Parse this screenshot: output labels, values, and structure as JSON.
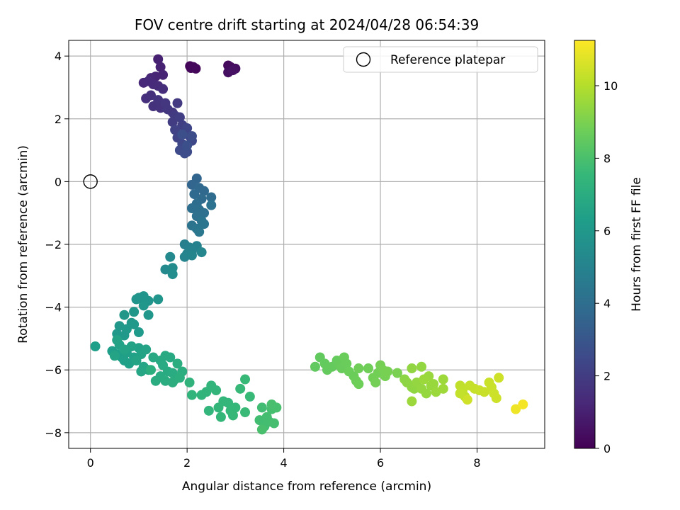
{
  "chart_data": {
    "type": "scatter",
    "title": "FOV centre drift starting at 2024/04/28 06:54:39",
    "xlabel": "Angular distance from reference (arcmin)",
    "ylabel": "Rotation from reference (arcmin)",
    "xlim": [
      -0.45,
      9.4
    ],
    "ylim": [
      -8.5,
      4.5
    ],
    "xticks": [
      0,
      2,
      4,
      6,
      8
    ],
    "yticks": [
      -8,
      -6,
      -4,
      -2,
      0,
      2,
      4
    ],
    "xtick_labels": [
      "0",
      "2",
      "4",
      "6",
      "8"
    ],
    "ytick_labels": [
      "−8",
      "−6",
      "−4",
      "−2",
      "0",
      "2",
      "4"
    ],
    "grid": true,
    "legend": {
      "label": "Reference platepar",
      "placement": "top-right"
    },
    "reference_point": {
      "x": 0,
      "y": 0
    },
    "colorbar": {
      "label": "Hours from first FF file",
      "colormap": "viridis",
      "range": [
        0,
        11.25
      ],
      "ticks": [
        0,
        2,
        4,
        6,
        8,
        10
      ],
      "tick_labels": [
        "0",
        "2",
        "4",
        "6",
        "8",
        "10"
      ]
    },
    "points": [
      [
        2.06,
        3.68,
        0.1
      ],
      [
        2.08,
        3.62,
        0.15
      ],
      [
        2.18,
        3.6,
        0.2
      ],
      [
        2.13,
        3.65,
        0.25
      ],
      [
        2.85,
        3.7,
        0.3
      ],
      [
        2.9,
        3.65,
        0.35
      ],
      [
        3.0,
        3.6,
        0.4
      ],
      [
        2.85,
        3.48,
        0.45
      ],
      [
        2.95,
        3.55,
        0.5
      ],
      [
        1.4,
        3.9,
        1.0
      ],
      [
        1.45,
        3.65,
        1.05
      ],
      [
        1.5,
        3.4,
        1.1
      ],
      [
        1.35,
        3.35,
        1.15
      ],
      [
        1.25,
        3.3,
        1.2
      ],
      [
        1.1,
        3.15,
        1.25
      ],
      [
        1.2,
        3.2,
        1.3
      ],
      [
        1.3,
        3.1,
        1.35
      ],
      [
        1.4,
        3.05,
        1.4
      ],
      [
        1.5,
        2.95,
        1.45
      ],
      [
        1.15,
        2.65,
        1.5
      ],
      [
        1.25,
        2.75,
        1.55
      ],
      [
        1.3,
        2.4,
        1.6
      ],
      [
        1.45,
        2.35,
        1.65
      ],
      [
        1.4,
        2.6,
        1.7
      ],
      [
        1.55,
        2.5,
        1.75
      ],
      [
        1.6,
        2.3,
        1.8
      ],
      [
        1.7,
        2.2,
        1.85
      ],
      [
        1.8,
        2.5,
        1.9
      ],
      [
        1.75,
        2.1,
        1.95
      ],
      [
        1.7,
        1.9,
        2.0
      ],
      [
        1.85,
        2.05,
        2.05
      ],
      [
        1.9,
        1.8,
        2.1
      ],
      [
        1.95,
        1.6,
        2.15
      ],
      [
        1.75,
        1.65,
        2.2
      ],
      [
        1.8,
        1.4,
        2.25
      ],
      [
        2.0,
        1.7,
        2.3
      ],
      [
        2.05,
        1.45,
        2.35
      ],
      [
        1.9,
        1.2,
        2.4
      ],
      [
        2.1,
        1.3,
        2.45
      ],
      [
        1.85,
        1.0,
        2.5
      ],
      [
        2.0,
        0.95,
        2.55
      ],
      [
        1.95,
        0.9,
        2.6
      ],
      [
        2.1,
        1.45,
        2.65
      ],
      [
        1.9,
        1.5,
        2.7
      ],
      [
        2.0,
        1.15,
        2.75
      ],
      [
        2.2,
        0.1,
        3.6
      ],
      [
        2.1,
        -0.1,
        3.65
      ],
      [
        2.25,
        -0.2,
        3.7
      ],
      [
        2.35,
        -0.3,
        3.75
      ],
      [
        2.15,
        -0.4,
        3.8
      ],
      [
        2.3,
        -0.55,
        3.85
      ],
      [
        2.5,
        -0.5,
        3.9
      ],
      [
        2.2,
        -0.7,
        3.95
      ],
      [
        2.1,
        -0.85,
        4.0
      ],
      [
        2.25,
        -0.9,
        4.05
      ],
      [
        2.35,
        -1.0,
        4.1
      ],
      [
        2.2,
        -1.1,
        4.15
      ],
      [
        2.5,
        -0.75,
        4.2
      ],
      [
        2.3,
        -1.25,
        4.25
      ],
      [
        2.1,
        -1.4,
        4.3
      ],
      [
        2.2,
        -1.5,
        4.35
      ],
      [
        2.35,
        -1.35,
        4.4
      ],
      [
        2.25,
        -1.6,
        4.45
      ],
      [
        1.95,
        -2.0,
        4.8
      ],
      [
        2.05,
        -2.1,
        4.85
      ],
      [
        2.2,
        -2.05,
        4.9
      ],
      [
        2.1,
        -2.2,
        4.95
      ],
      [
        2.0,
        -2.3,
        5.0
      ],
      [
        1.95,
        -2.4,
        5.05
      ],
      [
        2.1,
        -2.35,
        5.1
      ],
      [
        2.3,
        -2.25,
        5.15
      ],
      [
        1.65,
        -2.4,
        5.3
      ],
      [
        1.55,
        -2.8,
        5.35
      ],
      [
        1.7,
        -2.75,
        5.4
      ],
      [
        1.7,
        -2.95,
        5.45
      ],
      [
        1.0,
        -3.7,
        5.8
      ],
      [
        1.1,
        -3.65,
        5.82
      ],
      [
        0.95,
        -3.75,
        5.84
      ],
      [
        1.2,
        -3.8,
        5.86
      ],
      [
        1.4,
        -3.75,
        5.88
      ],
      [
        1.1,
        -3.95,
        5.9
      ],
      [
        1.2,
        -4.25,
        5.92
      ],
      [
        0.9,
        -4.15,
        5.94
      ],
      [
        0.85,
        -4.5,
        5.96
      ],
      [
        0.7,
        -4.25,
        5.98
      ],
      [
        0.6,
        -4.6,
        6.0
      ],
      [
        0.75,
        -4.7,
        6.02
      ],
      [
        0.9,
        -4.55,
        6.04
      ],
      [
        0.55,
        -4.85,
        6.06
      ],
      [
        0.7,
        -4.9,
        6.08
      ],
      [
        1.0,
        -4.8,
        6.1
      ],
      [
        0.1,
        -5.25,
        6.3
      ],
      [
        0.45,
        -5.4,
        6.32
      ],
      [
        0.55,
        -5.5,
        6.34
      ],
      [
        0.65,
        -5.6,
        6.36
      ],
      [
        0.7,
        -5.7,
        6.38
      ],
      [
        0.8,
        -5.8,
        6.4
      ],
      [
        0.75,
        -5.45,
        6.42
      ],
      [
        0.9,
        -5.6,
        6.44
      ],
      [
        1.0,
        -5.3,
        6.46
      ],
      [
        0.6,
        -5.2,
        6.48
      ],
      [
        0.55,
        -5.05,
        6.5
      ],
      [
        0.85,
        -5.25,
        6.52
      ],
      [
        1.05,
        -5.5,
        6.54
      ],
      [
        1.15,
        -5.35,
        6.56
      ],
      [
        0.95,
        -5.7,
        6.58
      ],
      [
        0.7,
        -5.35,
        6.6
      ],
      [
        0.5,
        -5.55,
        6.62
      ],
      [
        1.1,
        -5.9,
        6.64
      ],
      [
        1.2,
        -6.0,
        6.66
      ],
      [
        1.05,
        -6.05,
        6.68
      ],
      [
        1.3,
        -5.6,
        6.8
      ],
      [
        1.45,
        -5.7,
        6.82
      ],
      [
        1.55,
        -5.55,
        6.84
      ],
      [
        1.65,
        -5.6,
        6.86
      ],
      [
        1.5,
        -5.85,
        6.88
      ],
      [
        1.6,
        -6.05,
        6.9
      ],
      [
        1.7,
        -6.1,
        6.92
      ],
      [
        1.45,
        -6.2,
        6.94
      ],
      [
        1.35,
        -6.35,
        6.96
      ],
      [
        1.55,
        -6.35,
        6.98
      ],
      [
        1.75,
        -6.3,
        7.0
      ],
      [
        1.9,
        -6.05,
        7.02
      ],
      [
        1.8,
        -5.8,
        7.04
      ],
      [
        1.7,
        -6.4,
        7.06
      ],
      [
        1.85,
        -6.25,
        7.08
      ],
      [
        1.25,
        -6.0,
        7.1
      ],
      [
        2.05,
        -6.4,
        7.3
      ],
      [
        2.1,
        -6.8,
        7.32
      ],
      [
        2.3,
        -6.8,
        7.34
      ],
      [
        2.4,
        -6.7,
        7.36
      ],
      [
        2.5,
        -6.5,
        7.38
      ],
      [
        2.6,
        -6.65,
        7.4
      ],
      [
        2.45,
        -7.3,
        7.42
      ],
      [
        2.65,
        -7.2,
        7.44
      ],
      [
        2.75,
        -7.0,
        7.46
      ],
      [
        2.85,
        -7.05,
        7.48
      ],
      [
        2.7,
        -7.5,
        7.5
      ],
      [
        2.9,
        -7.3,
        7.52
      ],
      [
        3.0,
        -7.2,
        7.54
      ],
      [
        2.95,
        -7.45,
        7.56
      ],
      [
        3.1,
        -6.6,
        7.58
      ],
      [
        3.2,
        -6.3,
        7.6
      ],
      [
        3.3,
        -6.85,
        7.62
      ],
      [
        3.2,
        -7.35,
        7.64
      ],
      [
        3.55,
        -7.2,
        7.8
      ],
      [
        3.5,
        -7.6,
        7.82
      ],
      [
        3.6,
        -7.8,
        7.84
      ],
      [
        3.65,
        -7.5,
        7.86
      ],
      [
        3.7,
        -7.65,
        7.88
      ],
      [
        3.75,
        -7.25,
        7.9
      ],
      [
        3.8,
        -7.7,
        7.92
      ],
      [
        3.75,
        -7.1,
        7.94
      ],
      [
        3.85,
        -7.2,
        7.96
      ],
      [
        3.55,
        -7.9,
        7.98
      ],
      [
        4.65,
        -5.9,
        8.5
      ],
      [
        4.75,
        -5.6,
        8.52
      ],
      [
        4.85,
        -5.8,
        8.54
      ],
      [
        4.9,
        -6.0,
        8.56
      ],
      [
        5.0,
        -5.9,
        8.58
      ],
      [
        5.1,
        -5.7,
        8.6
      ],
      [
        5.15,
        -5.85,
        8.62
      ],
      [
        5.2,
        -5.95,
        8.64
      ],
      [
        5.25,
        -5.6,
        8.66
      ],
      [
        5.3,
        -5.8,
        8.68
      ],
      [
        5.35,
        -6.05,
        8.7
      ],
      [
        5.45,
        -6.2,
        8.72
      ],
      [
        5.5,
        -6.35,
        8.74
      ],
      [
        5.55,
        -6.45,
        8.76
      ],
      [
        5.55,
        -5.95,
        8.78
      ],
      [
        5.75,
        -5.95,
        8.8
      ],
      [
        5.85,
        -6.25,
        8.82
      ],
      [
        5.95,
        -6.1,
        8.84
      ],
      [
        5.9,
        -6.4,
        8.86
      ],
      [
        6.0,
        -5.85,
        8.88
      ],
      [
        6.05,
        -6.0,
        8.9
      ],
      [
        6.1,
        -6.2,
        8.92
      ],
      [
        6.15,
        -6.05,
        8.94
      ],
      [
        6.35,
        -6.1,
        8.96
      ],
      [
        6.5,
        -6.3,
        9.3
      ],
      [
        6.55,
        -6.4,
        9.32
      ],
      [
        6.65,
        -6.55,
        9.34
      ],
      [
        6.7,
        -6.6,
        9.36
      ],
      [
        6.65,
        -5.95,
        9.38
      ],
      [
        6.85,
        -5.9,
        9.4
      ],
      [
        6.75,
        -6.4,
        9.42
      ],
      [
        6.85,
        -6.6,
        9.44
      ],
      [
        6.95,
        -6.75,
        9.46
      ],
      [
        7.05,
        -6.5,
        9.48
      ],
      [
        7.0,
        -6.2,
        9.5
      ],
      [
        7.1,
        -6.45,
        9.52
      ],
      [
        7.15,
        -6.7,
        9.54
      ],
      [
        6.9,
        -6.3,
        9.56
      ],
      [
        6.65,
        -7.0,
        9.58
      ],
      [
        7.3,
        -6.3,
        9.6
      ],
      [
        7.3,
        -6.6,
        9.62
      ],
      [
        7.65,
        -6.5,
        10.2
      ],
      [
        7.7,
        -6.65,
        10.22
      ],
      [
        7.75,
        -6.85,
        10.24
      ],
      [
        7.65,
        -6.75,
        10.26
      ],
      [
        7.85,
        -6.5,
        10.28
      ],
      [
        7.95,
        -6.6,
        10.3
      ],
      [
        8.05,
        -6.65,
        10.32
      ],
      [
        8.15,
        -6.7,
        10.34
      ],
      [
        8.25,
        -6.4,
        10.36
      ],
      [
        8.3,
        -6.55,
        10.38
      ],
      [
        8.35,
        -6.75,
        10.4
      ],
      [
        8.4,
        -6.9,
        10.42
      ],
      [
        8.45,
        -6.25,
        10.44
      ],
      [
        7.8,
        -6.95,
        10.46
      ],
      [
        8.8,
        -7.25,
        11.0
      ],
      [
        8.95,
        -7.1,
        11.1
      ]
    ]
  }
}
